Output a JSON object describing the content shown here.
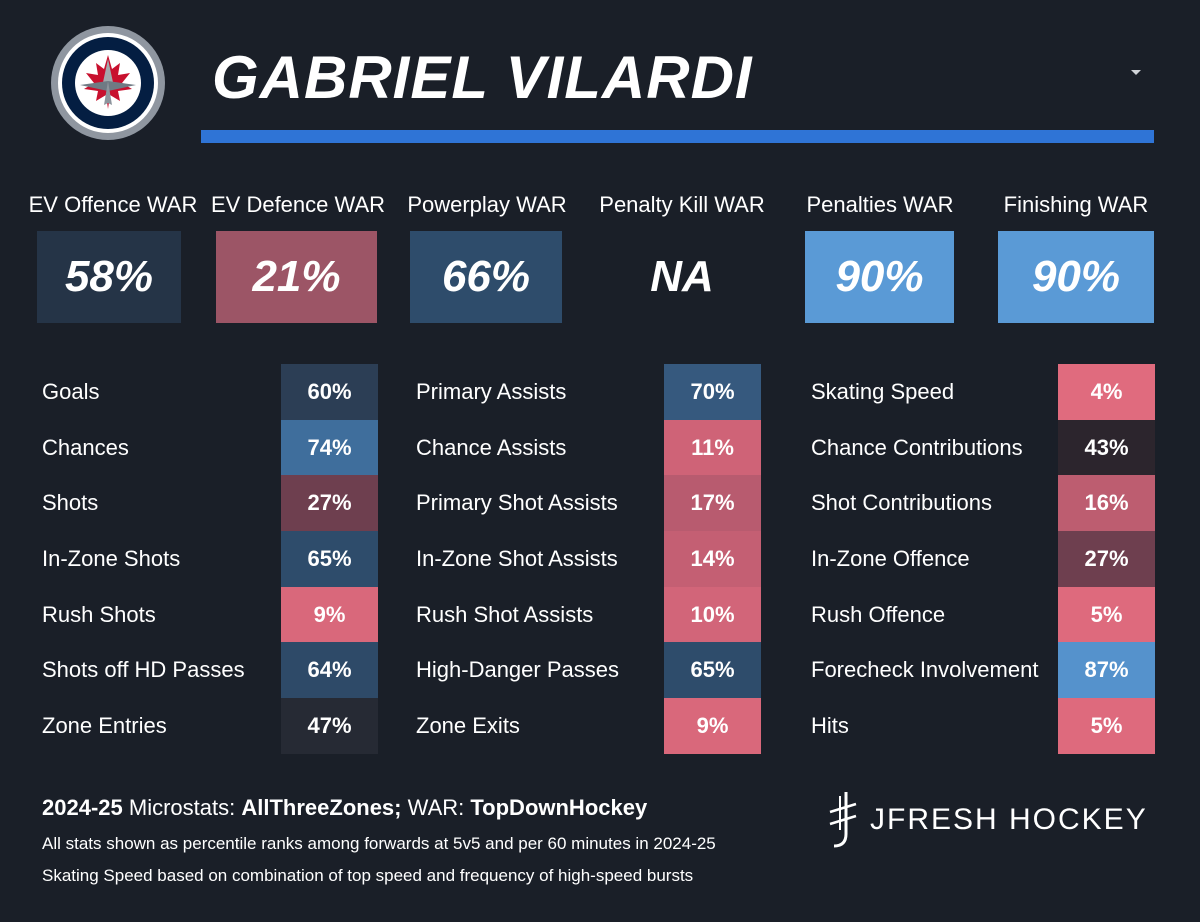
{
  "player": {
    "name": "GABRIEL VILARDI"
  },
  "colors": {
    "title_bar": "#2f74d6",
    "background": "#1a1f28"
  },
  "war": [
    {
      "label": "EV Offence WAR",
      "value": "58%",
      "color": "#253447"
    },
    {
      "label": "EV Defence WAR",
      "value": "21%",
      "color": "#9c5566"
    },
    {
      "label": "Powerplay WAR",
      "value": "66%",
      "color": "#2e4c6b"
    },
    {
      "label": "Penalty Kill WAR",
      "value": "NA",
      "color": ""
    },
    {
      "label": "Penalties WAR",
      "value": "90%",
      "color": "#5a9ad6"
    },
    {
      "label": "Finishing WAR",
      "value": "90%",
      "color": "#5a9ad6"
    }
  ],
  "stats": [
    [
      {
        "label": "Goals",
        "value": "60%",
        "color": "#2c3e55"
      },
      {
        "label": "Chances",
        "value": "74%",
        "color": "#3f6e9c"
      },
      {
        "label": "Shots",
        "value": "27%",
        "color": "#6e3f4f"
      },
      {
        "label": "In-Zone Shots",
        "value": "65%",
        "color": "#2e4c6b"
      },
      {
        "label": "Rush Shots",
        "value": "9%",
        "color": "#d9687b"
      },
      {
        "label": "Shots off HD Passes",
        "value": "64%",
        "color": "#2e4a68"
      },
      {
        "label": "Zone Entries",
        "value": "47%",
        "color": "#262a34"
      }
    ],
    [
      {
        "label": "Primary Assists",
        "value": "70%",
        "color": "#36597e"
      },
      {
        "label": "Chance Assists",
        "value": "11%",
        "color": "#cf6377"
      },
      {
        "label": "Primary Shot Assists",
        "value": "17%",
        "color": "#b85b6f"
      },
      {
        "label": "In-Zone Shot Assists",
        "value": "14%",
        "color": "#c45f73"
      },
      {
        "label": "Rush Shot Assists",
        "value": "10%",
        "color": "#d26579"
      },
      {
        "label": "High-Danger Passes",
        "value": "65%",
        "color": "#2e4c6b"
      },
      {
        "label": "Zone Exits",
        "value": "9%",
        "color": "#d9687b"
      }
    ],
    [
      {
        "label": "Skating Speed",
        "value": "4%",
        "color": "#e06b7e"
      },
      {
        "label": "Chance Contributions",
        "value": "43%",
        "color": "#2c252d"
      },
      {
        "label": "Shot Contributions",
        "value": "16%",
        "color": "#bd5d70"
      },
      {
        "label": "In-Zone Offence",
        "value": "27%",
        "color": "#6e3f4f"
      },
      {
        "label": "Rush Offence",
        "value": "5%",
        "color": "#de6a7d"
      },
      {
        "label": "Forecheck Involvement",
        "value": "87%",
        "color": "#5592cc"
      },
      {
        "label": "Hits",
        "value": "5%",
        "color": "#de6a7d"
      }
    ]
  ],
  "footer": {
    "season": "2024-25",
    "microstats_label": "Microstats:",
    "microstats_source": "AllThreeZones;",
    "war_label": "WAR:",
    "war_source": "TopDownHockey",
    "note1": "All stats shown as percentile ranks among forwards at 5v5 and per 60 minutes in 2024-25",
    "note2": "Skating Speed based on combination of top speed and frequency of high-speed bursts"
  },
  "brand": {
    "name": "JFRESH HOCKEY"
  },
  "icons": {
    "logo": "winnipeg-jets-logo-icon",
    "dropdown": "caret-down-icon",
    "brand": "jfresh-mark-icon"
  }
}
